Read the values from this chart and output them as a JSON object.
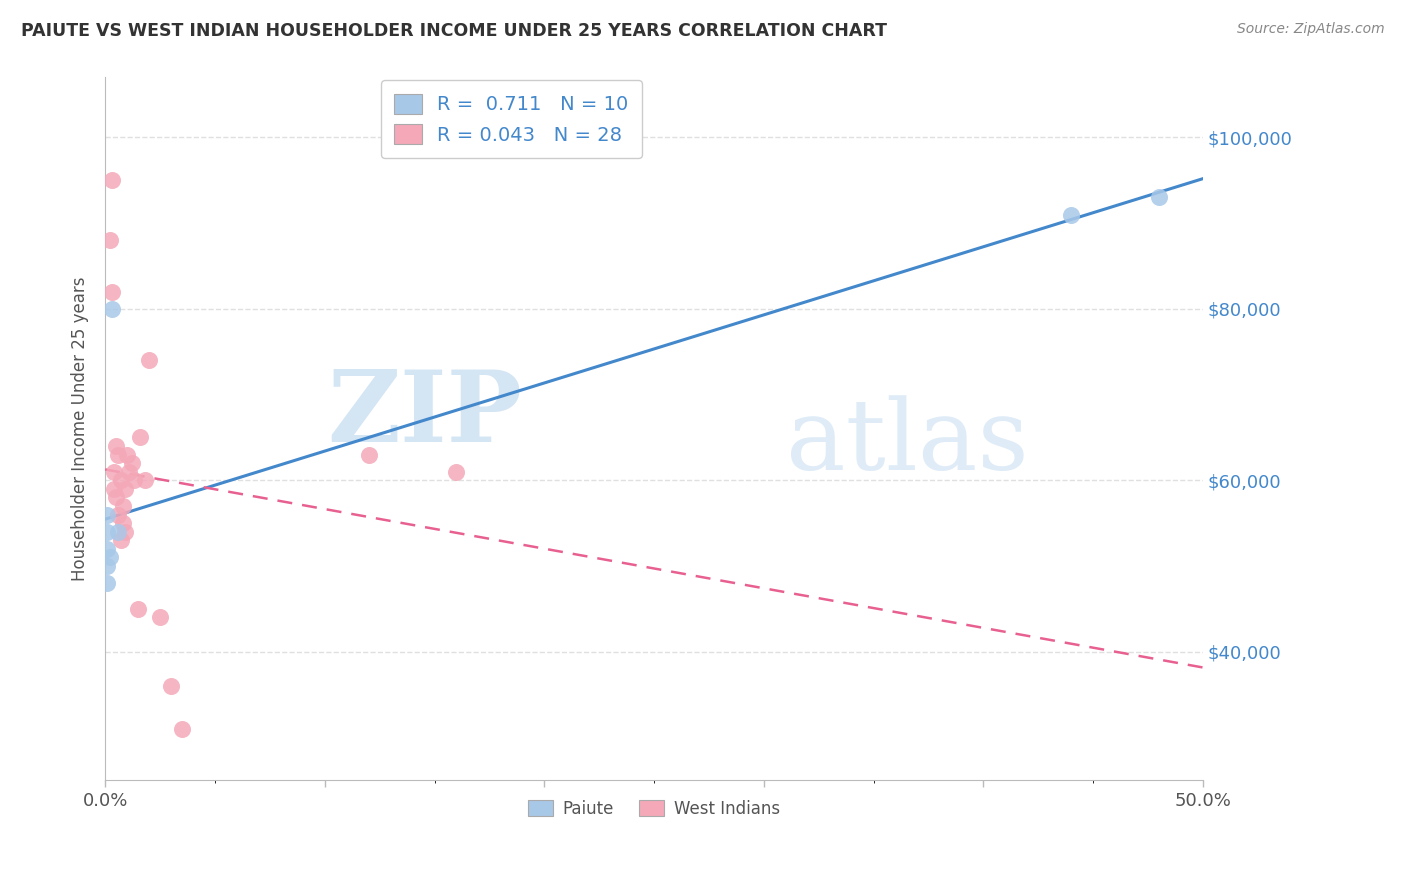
{
  "title": "PAIUTE VS WEST INDIAN HOUSEHOLDER INCOME UNDER 25 YEARS CORRELATION CHART",
  "source": "Source: ZipAtlas.com",
  "ylabel": "Householder Income Under 25 years",
  "ytick_labels": [
    "$40,000",
    "$60,000",
    "$80,000",
    "$100,000"
  ],
  "ytick_values": [
    40000,
    60000,
    80000,
    100000
  ],
  "watermark_part1": "ZIP",
  "watermark_part2": "atlas",
  "legend_blue_R": "0.711",
  "legend_blue_N": "10",
  "legend_pink_R": "0.043",
  "legend_pink_N": "28",
  "legend_label_blue": "Paiute",
  "legend_label_pink": "West Indians",
  "blue_color": "#a8c8e8",
  "pink_color": "#f4a8b8",
  "blue_line_color": "#4488cc",
  "pink_line_color": "#e86090",
  "paiute_x": [
    0.001,
    0.001,
    0.001,
    0.001,
    0.001,
    0.002,
    0.003,
    0.006,
    0.44,
    0.48
  ],
  "paiute_y": [
    48000,
    50000,
    52000,
    54000,
    56000,
    51000,
    80000,
    54000,
    91000,
    93000
  ],
  "west_indian_x": [
    0.002,
    0.003,
    0.003,
    0.004,
    0.004,
    0.005,
    0.005,
    0.006,
    0.006,
    0.007,
    0.007,
    0.008,
    0.008,
    0.009,
    0.009,
    0.01,
    0.011,
    0.012,
    0.013,
    0.015,
    0.016,
    0.018,
    0.02,
    0.025,
    0.03,
    0.035,
    0.12,
    0.16
  ],
  "west_indian_y": [
    88000,
    95000,
    82000,
    61000,
    59000,
    64000,
    58000,
    63000,
    56000,
    53000,
    60000,
    57000,
    55000,
    59000,
    54000,
    63000,
    61000,
    62000,
    60000,
    45000,
    65000,
    60000,
    74000,
    44000,
    36000,
    31000,
    63000,
    61000
  ],
  "xlim": [
    0.0,
    0.5
  ],
  "ylim": [
    25000,
    107000
  ],
  "xticks": [
    0.0,
    0.1,
    0.2,
    0.3,
    0.4,
    0.5
  ],
  "xtick_labels": [
    "0.0%",
    "",
    "",
    "",
    "",
    "50.0%"
  ],
  "background_color": "#ffffff",
  "grid_color": "#e0e0e0"
}
